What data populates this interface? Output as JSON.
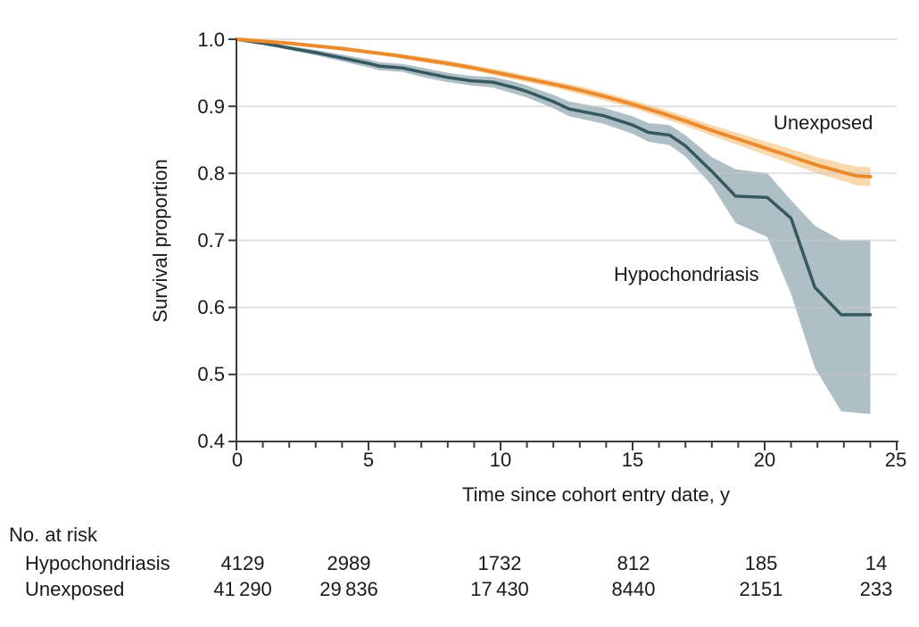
{
  "chart_data": {
    "type": "line",
    "title": "",
    "xlabel": "Time since cohort entry date, y",
    "ylabel": "Survival proportion",
    "xlim": [
      0,
      25
    ],
    "ylim": [
      0.4,
      1.0
    ],
    "grid": "horizontal",
    "legend_position": "inline-labels",
    "yticks": [
      1.0,
      0.9,
      0.8,
      0.7,
      0.6,
      0.5,
      0.4
    ],
    "ytick_labels": [
      "1.0",
      "0.9",
      "0.8",
      "0.7",
      "0.6",
      "0.5",
      "0.4"
    ],
    "gridlines_y": [
      1.0,
      0.9,
      0.8,
      0.7,
      0.6,
      0.5
    ],
    "xticks_major": [
      0,
      5,
      10,
      15,
      20,
      25
    ],
    "xtick_labels": [
      "0",
      "5",
      "10",
      "15",
      "20",
      "25"
    ],
    "xticks_minor_step": 1,
    "series": [
      {
        "name": "Unexposed",
        "color": "#EC8B2D",
        "band_color": "#F9D8AE",
        "x": [
          0,
          1,
          2,
          3,
          4,
          5,
          6,
          7,
          8,
          9,
          10,
          11,
          12,
          13,
          14,
          15,
          16,
          17,
          18,
          19,
          20,
          21,
          22,
          23,
          23.5,
          24
        ],
        "y": [
          1.0,
          0.997,
          0.994,
          0.99,
          0.986,
          0.981,
          0.976,
          0.97,
          0.964,
          0.957,
          0.949,
          0.941,
          0.933,
          0.924,
          0.914,
          0.903,
          0.891,
          0.878,
          0.864,
          0.851,
          0.838,
          0.825,
          0.812,
          0.801,
          0.796,
          0.795
        ],
        "upper": [
          1.0,
          0.998,
          0.996,
          0.992,
          0.989,
          0.984,
          0.979,
          0.974,
          0.968,
          0.961,
          0.954,
          0.946,
          0.938,
          0.93,
          0.92,
          0.909,
          0.898,
          0.885,
          0.872,
          0.86,
          0.848,
          0.836,
          0.824,
          0.814,
          0.81,
          0.809
        ],
        "lower": [
          1.0,
          0.996,
          0.992,
          0.988,
          0.983,
          0.978,
          0.973,
          0.966,
          0.96,
          0.953,
          0.944,
          0.936,
          0.928,
          0.918,
          0.908,
          0.897,
          0.884,
          0.871,
          0.856,
          0.842,
          0.828,
          0.814,
          0.8,
          0.788,
          0.782,
          0.781
        ]
      },
      {
        "name": "Hypochondriasis",
        "color": "#35595F",
        "band_color": "#AFBFC6",
        "x": [
          0,
          1,
          2,
          3,
          4,
          5,
          5.4,
          6.3,
          7,
          8,
          8.9,
          9.7,
          10.5,
          11,
          12,
          12.6,
          13.9,
          15,
          15.6,
          16.4,
          17,
          18,
          18.9,
          20.1,
          21,
          21.9,
          22.9,
          24
        ],
        "y": [
          1.0,
          0.994,
          0.987,
          0.98,
          0.972,
          0.964,
          0.96,
          0.957,
          0.951,
          0.943,
          0.938,
          0.936,
          0.928,
          0.922,
          0.907,
          0.896,
          0.886,
          0.872,
          0.861,
          0.857,
          0.841,
          0.803,
          0.766,
          0.764,
          0.733,
          0.63,
          0.589,
          0.589
        ],
        "upper": [
          1.0,
          0.996,
          0.99,
          0.984,
          0.977,
          0.97,
          0.966,
          0.963,
          0.958,
          0.95,
          0.945,
          0.944,
          0.937,
          0.931,
          0.917,
          0.907,
          0.898,
          0.885,
          0.875,
          0.872,
          0.857,
          0.824,
          0.806,
          0.8,
          0.76,
          0.722,
          0.7,
          0.7
        ],
        "lower": [
          1.0,
          0.992,
          0.984,
          0.976,
          0.967,
          0.958,
          0.954,
          0.951,
          0.944,
          0.936,
          0.931,
          0.928,
          0.919,
          0.913,
          0.897,
          0.885,
          0.874,
          0.859,
          0.847,
          0.842,
          0.825,
          0.782,
          0.726,
          0.705,
          0.62,
          0.51,
          0.445,
          0.441
        ]
      }
    ],
    "at_risk": {
      "title": "No. at risk",
      "times": [
        0,
        5,
        10,
        15,
        20,
        25
      ],
      "rows": [
        {
          "label": "Hypochondriasis",
          "values": [
            "4129",
            "2989",
            "1732",
            "812",
            "185",
            "14"
          ]
        },
        {
          "label": "Unexposed",
          "values": [
            "41 290",
            "29 836",
            "17 430",
            "8440",
            "2151",
            "233"
          ]
        }
      ]
    },
    "axis_color": "#3e3e3e",
    "gridline_color": "#e0e0e0",
    "text_color": "#1a1a1a"
  }
}
